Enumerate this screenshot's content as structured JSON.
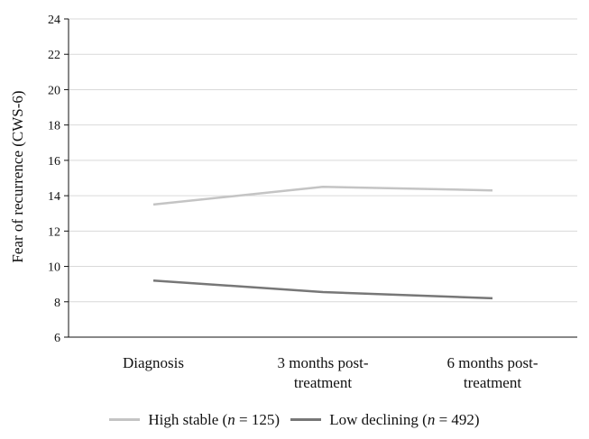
{
  "chart_data": {
    "type": "line",
    "categories": [
      [
        "Diagnosis"
      ],
      [
        "3 months post-",
        "treatment"
      ],
      [
        "6 months post-",
        "treatment"
      ]
    ],
    "series": [
      {
        "name": "High stable (n = 125)",
        "values": [
          13.5,
          14.5,
          14.3
        ],
        "color": "#c4c4c4"
      },
      {
        "name": "Low declining (n = 492)",
        "values": [
          9.2,
          8.55,
          8.2
        ],
        "color": "#777777"
      }
    ],
    "ylabel": "Fear of recurrence (CWS-6)",
    "ylim": [
      6,
      24
    ],
    "yticks": [
      6,
      8,
      10,
      12,
      14,
      16,
      18,
      20,
      22,
      24
    ],
    "grid": true,
    "legend_position": "bottom"
  },
  "legend": {
    "high_prefix": "High stable (",
    "high_n": "n",
    "high_suffix": " = 125)",
    "low_prefix": "Low declining (",
    "low_n": "n",
    "low_suffix": " = 492)"
  }
}
